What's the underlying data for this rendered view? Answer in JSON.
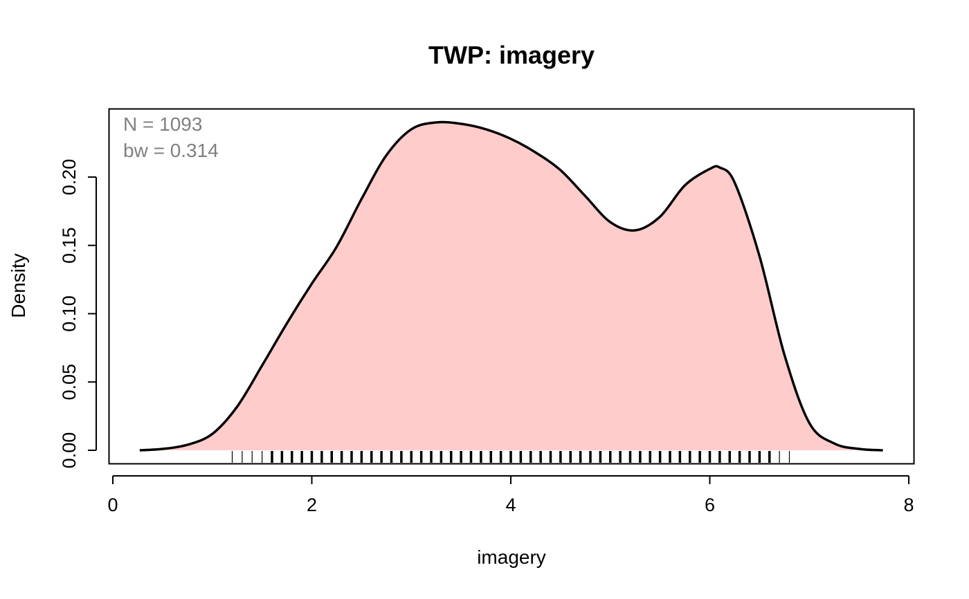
{
  "chart_data": {
    "type": "area",
    "title": "TWP: imagery",
    "xlabel": "imagery",
    "ylabel": "Density",
    "xlim": [
      0,
      8
    ],
    "ylim": [
      0,
      0.24
    ],
    "x_ticks": [
      "0",
      "2",
      "4",
      "6",
      "8"
    ],
    "y_ticks": [
      "0.00",
      "0.05",
      "0.10",
      "0.15",
      "0.20"
    ],
    "grid": false,
    "annotations": [
      "N = 1093",
      "bw = 0.314"
    ],
    "fill_color": "#FFCCCC",
    "line_color": "#000000",
    "series": [
      {
        "x": [
          0.27,
          0.5,
          0.75,
          1.0,
          1.25,
          1.5,
          1.75,
          2.0,
          2.25,
          2.5,
          2.75,
          3.0,
          3.25,
          3.5,
          3.75,
          4.0,
          4.25,
          4.5,
          4.75,
          5.0,
          5.25,
          5.5,
          5.75,
          6.0,
          6.1,
          6.25,
          6.5,
          6.75,
          7.0,
          7.25,
          7.5,
          7.74
        ],
        "y": [
          0.0,
          0.001,
          0.004,
          0.012,
          0.032,
          0.062,
          0.093,
          0.122,
          0.149,
          0.184,
          0.216,
          0.235,
          0.24,
          0.239,
          0.235,
          0.228,
          0.218,
          0.205,
          0.186,
          0.167,
          0.161,
          0.171,
          0.194,
          0.206,
          0.207,
          0.196,
          0.142,
          0.07,
          0.02,
          0.005,
          0.001,
          0.0
        ]
      }
    ],
    "rug_range": [
      1.2,
      6.8
    ],
    "rug_step": 0.1
  }
}
